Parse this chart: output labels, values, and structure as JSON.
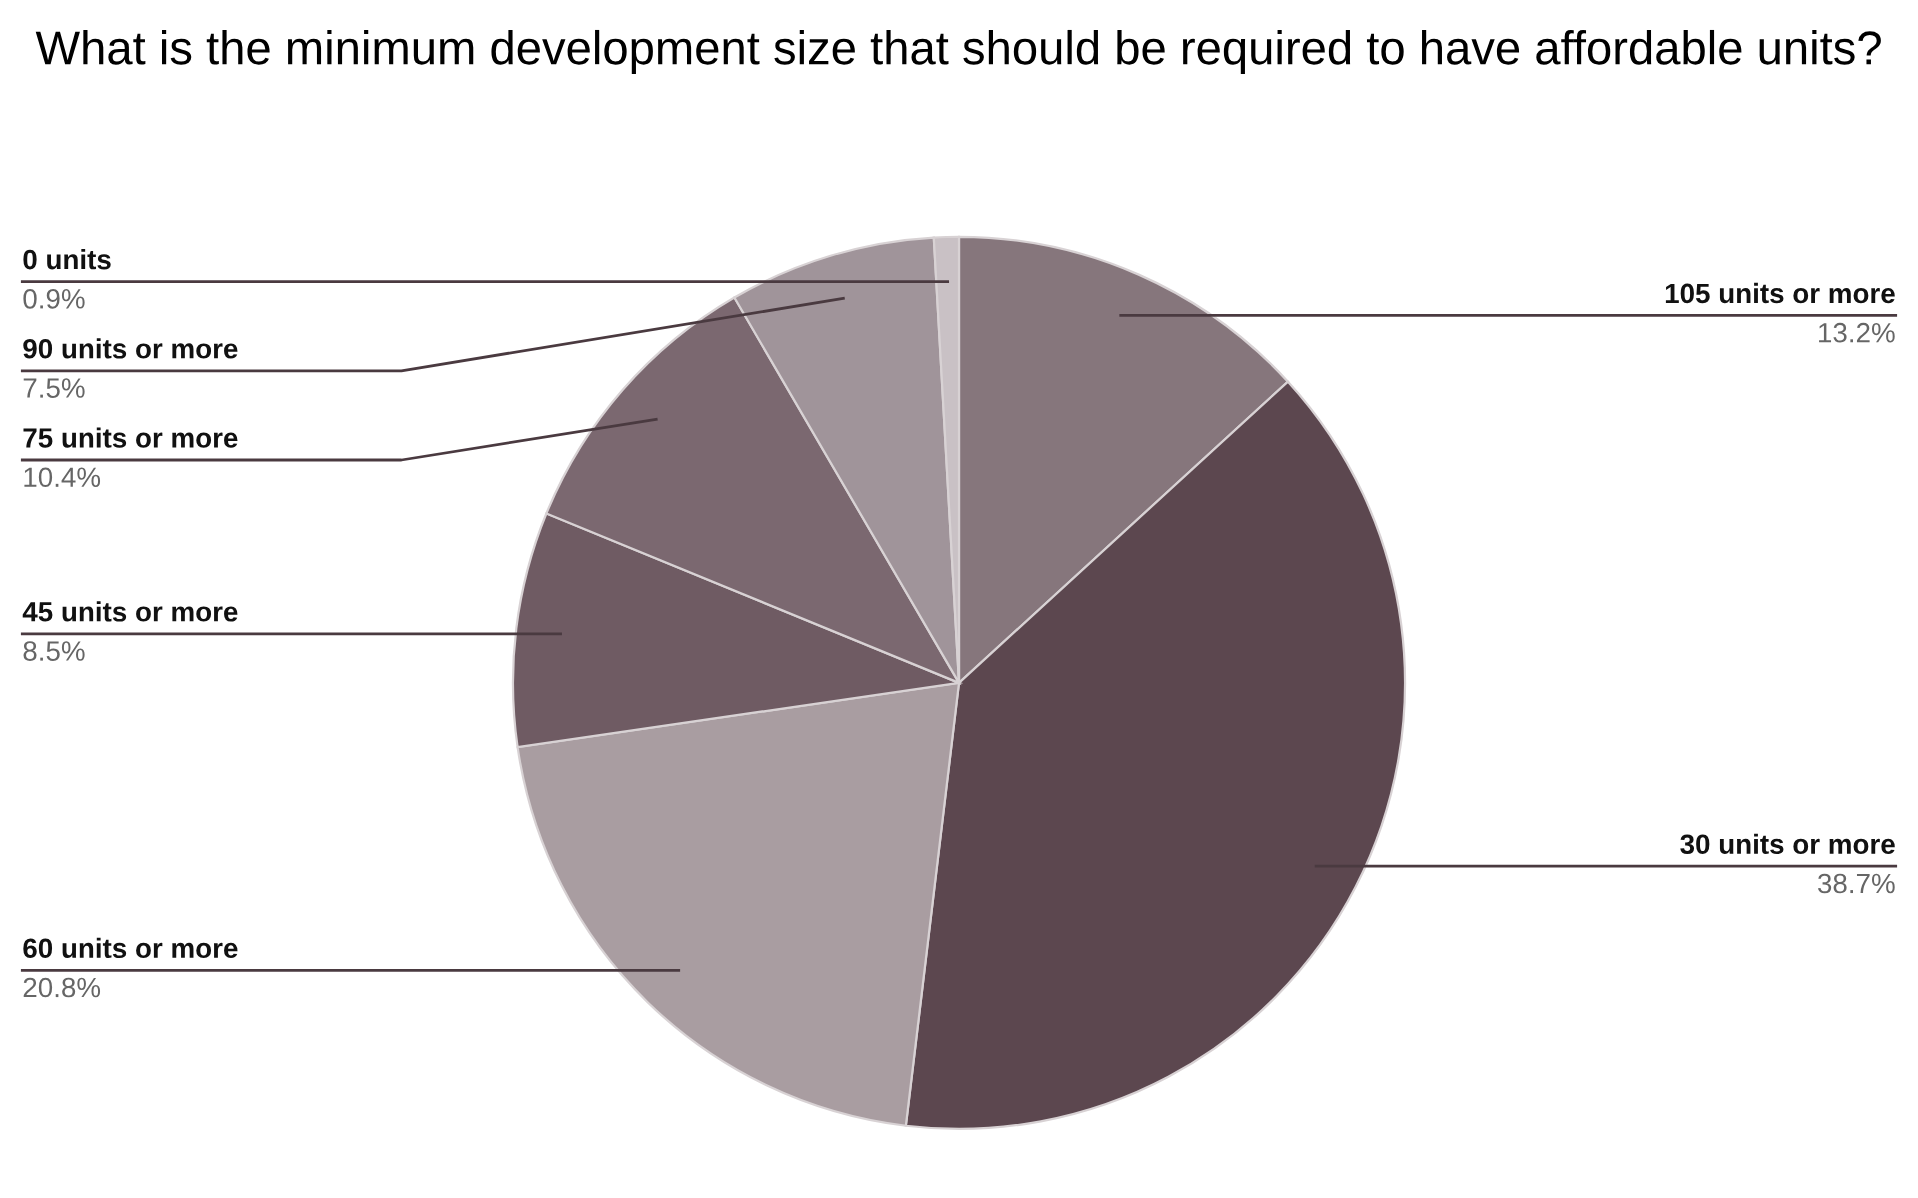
{
  "chart_data": {
    "type": "pie",
    "title": "What is the minimum development size that should be required to have affordable units?",
    "categories": [
      "105 units or more",
      "30 units or more",
      "60 units or more",
      "45 units or more",
      "75 units or more",
      "90 units or more",
      "0 units"
    ],
    "values": [
      13.2,
      38.7,
      20.8,
      8.5,
      10.4,
      7.5,
      0.9
    ],
    "value_labels": [
      "13.2%",
      "38.7%",
      "20.8%",
      "8.5%",
      "10.4%",
      "7.5%",
      "0.9%"
    ],
    "colors": [
      "#86767c",
      "#5c474f",
      "#a99da1",
      "#6f5b63",
      "#7b6870",
      "#a0949a",
      "#c9c1c5"
    ],
    "legend": false
  }
}
